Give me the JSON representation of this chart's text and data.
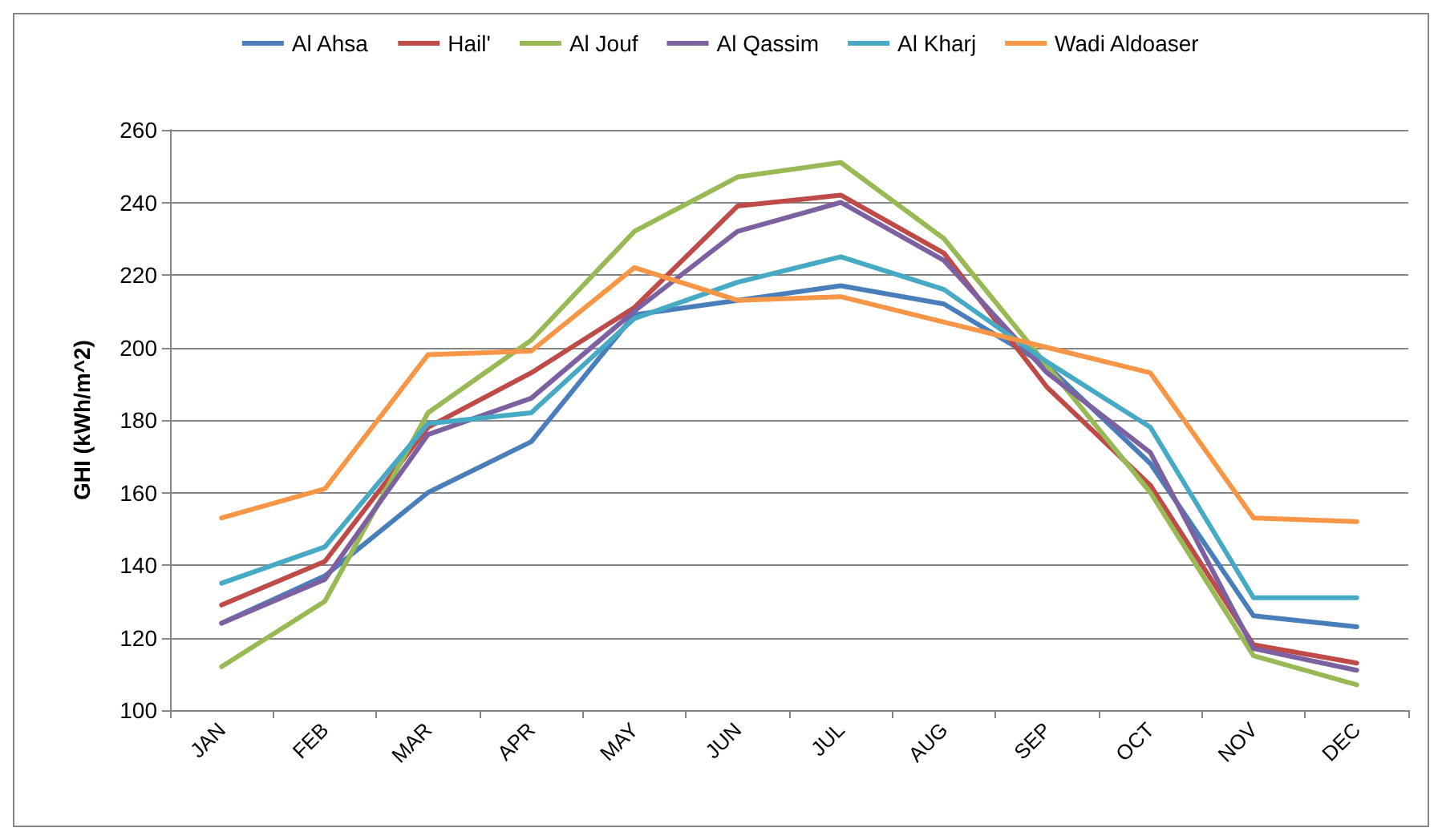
{
  "chart_data": {
    "type": "line",
    "ylabel": "GHI (kWh/m^2)",
    "categories": [
      "JAN",
      "FEB",
      "MAR",
      "APR",
      "MAY",
      "JUN",
      "JUL",
      "AUG",
      "SEP",
      "OCT",
      "NOV",
      "DEC"
    ],
    "series": [
      {
        "name": "Al Ahsa",
        "color": "#4a7ebb",
        "values": [
          124,
          137,
          160,
          174,
          209,
          213,
          217,
          212,
          195,
          168,
          126,
          123
        ]
      },
      {
        "name": "Hail'",
        "color": "#be4b48",
        "values": [
          129,
          141,
          178,
          193,
          211,
          239,
          242,
          226,
          189,
          162,
          118,
          113
        ]
      },
      {
        "name": "Al Jouf",
        "color": "#98b954",
        "values": [
          112,
          130,
          182,
          202,
          232,
          247,
          251,
          230,
          195,
          160,
          115,
          107
        ]
      },
      {
        "name": "Al Qassim",
        "color": "#7d60a0",
        "values": [
          124,
          136,
          176,
          186,
          210,
          232,
          240,
          224,
          193,
          171,
          117,
          111
        ]
      },
      {
        "name": "Al Kharj",
        "color": "#46aac5",
        "values": [
          135,
          145,
          179,
          182,
          208,
          218,
          225,
          216,
          196,
          178,
          131,
          131
        ]
      },
      {
        "name": "Wadi Aldoaser",
        "color": "#f79646",
        "values": [
          153,
          161,
          198,
          199,
          222,
          213,
          214,
          207,
          200,
          193,
          153,
          152
        ]
      }
    ],
    "ylim": [
      100,
      260
    ],
    "yticks": [
      100,
      120,
      140,
      160,
      180,
      200,
      220,
      240,
      260
    ],
    "grid": "y",
    "legend": "top",
    "marker": "none",
    "line_style": "solid"
  }
}
